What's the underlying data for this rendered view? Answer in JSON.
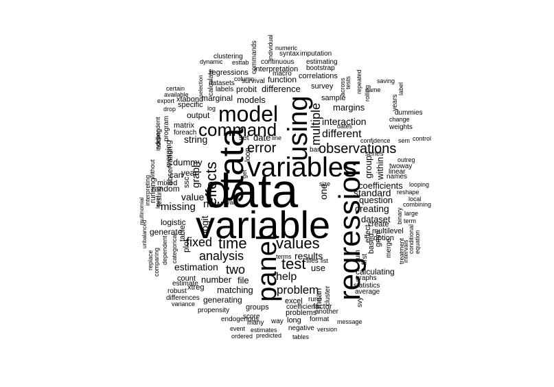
{
  "word_cloud": {
    "words": [
      "data",
      "variable",
      "variables",
      "regression",
      "stata",
      "panel",
      "model",
      "using",
      "command",
      "values",
      "effects",
      "time",
      "test",
      "error",
      "observations",
      "multiple",
      "two",
      "fixed",
      "analysis",
      "problem",
      "help",
      "new",
      "different",
      "interaction",
      "margins",
      "missing",
      "graph",
      "value",
      "results",
      "standard",
      "creating",
      "dataset",
      "logit",
      "estimation",
      "string",
      "file",
      "number",
      "matching",
      "generating",
      "groups",
      "models",
      "difference",
      "marginal",
      "probit",
      "function",
      "correlations",
      "survey",
      "sample",
      "dates",
      "question",
      "coefficients",
      "multilevel",
      "effect",
      "create",
      "calculating",
      "graphs",
      "statistics",
      "average",
      "excel",
      "factor",
      "coefficient",
      "problems",
      "another",
      "format",
      "long",
      "way",
      "score",
      "propensity",
      "endogenous",
      "many",
      "event",
      "estimates",
      "negative",
      "version",
      "message",
      "tables",
      "predicted",
      "ordered",
      "regressions",
      "interpretation",
      "bootstrap",
      "macro",
      "continuous",
      "estimating",
      "syntax",
      "imputation",
      "numeric",
      "individual",
      "clustering",
      "esttab",
      "dynamic",
      "datasets",
      "column",
      "commands",
      "labels",
      "survival",
      "output",
      "specific",
      "log",
      "certain",
      "xtabond",
      "export",
      "drop",
      "matrix",
      "foreach",
      "program",
      "merging",
      "observation",
      "dummy",
      "year",
      "adding",
      "without",
      "independent",
      "mixed",
      "random",
      "can",
      "ssc",
      "logistic",
      "generate",
      "testing",
      "running",
      "interpreting",
      "multinomial",
      "level",
      "unbalanced",
      "dependent",
      "categorical",
      "comparing",
      "replace",
      "plot",
      "table",
      "count",
      "estimate",
      "robust",
      "xtreg",
      "differences",
      "variance",
      "set",
      "date",
      "loop",
      "get",
      "line",
      "bar",
      "size",
      "one",
      "use",
      "files",
      "list",
      "terms",
      "rune",
      "cluster",
      "mean",
      "svy",
      "first",
      "sum",
      "based",
      "gmm",
      "merge",
      "option",
      "treatment",
      "intervals",
      "conditional",
      "equation",
      "term",
      "binary",
      "large",
      "local",
      "combining",
      "reshape",
      "looping",
      "outreg",
      "names",
      "series",
      "linear",
      "twoway",
      "group",
      "within",
      "confidence",
      "sem",
      "control",
      "weights",
      "change",
      "dummies",
      "years",
      "label",
      "rolling",
      "repeated",
      "across",
      "tests",
      "name",
      "saving",
      "selection",
      "calculate",
      "available",
      "val"
    ]
  }
}
